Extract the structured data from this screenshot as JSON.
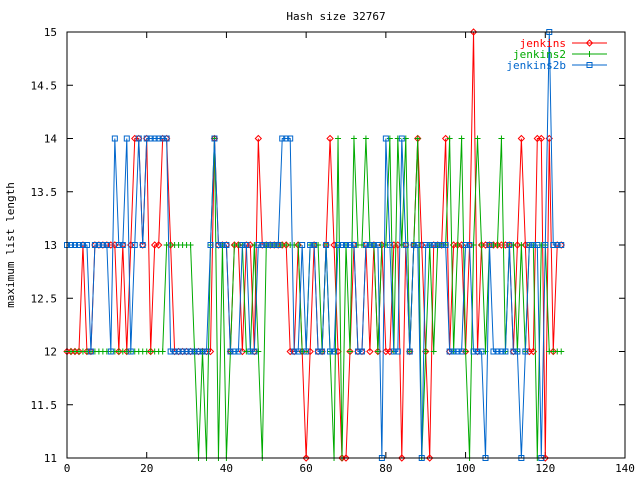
{
  "chart_data": {
    "type": "line",
    "title": "Hash size 32767",
    "xlabel": "",
    "ylabel": "maximum list length",
    "xlim": [
      0,
      140
    ],
    "ylim": [
      11,
      15
    ],
    "xticks": [
      0,
      20,
      40,
      60,
      80,
      100,
      120,
      140
    ],
    "yticks": [
      11,
      11.5,
      12,
      12.5,
      13,
      13.5,
      14,
      14.5,
      15
    ],
    "ytick_labels": [
      "11",
      "11.5",
      "12",
      "12.5",
      "13",
      "13.5",
      "14",
      "14.5",
      "15"
    ],
    "grid": false,
    "legend_position": "top-right",
    "x": [
      0,
      1,
      2,
      3,
      4,
      5,
      6,
      7,
      8,
      9,
      10,
      11,
      12,
      13,
      14,
      15,
      16,
      17,
      18,
      19,
      20,
      21,
      22,
      23,
      24,
      25,
      26,
      27,
      28,
      29,
      30,
      31,
      32,
      33,
      34,
      35,
      36,
      37,
      38,
      39,
      40,
      41,
      42,
      43,
      44,
      45,
      46,
      47,
      48,
      49,
      50,
      51,
      52,
      53,
      54,
      55,
      56,
      57,
      58,
      59,
      60,
      61,
      62,
      63,
      64,
      65,
      66,
      67,
      68,
      69,
      70,
      71,
      72,
      73,
      74,
      75,
      76,
      77,
      78,
      79,
      80,
      81,
      82,
      83,
      84,
      85,
      86,
      87,
      88,
      89,
      90,
      91,
      92,
      93,
      94,
      95,
      96,
      97,
      98,
      99,
      100,
      101,
      102,
      103,
      104,
      105,
      106,
      107,
      108,
      109,
      110,
      111,
      112,
      113,
      114,
      115,
      116,
      117,
      118,
      119,
      120,
      121,
      122,
      123,
      124
    ],
    "series": [
      {
        "name": "jenkins",
        "color": "#ff0000",
        "marker": "diamond",
        "values": [
          12,
          12,
          12,
          12,
          13,
          12,
          12,
          13,
          13,
          13,
          13,
          13,
          13,
          12,
          13,
          12,
          13,
          14,
          14,
          13,
          14,
          12,
          13,
          13,
          14,
          14,
          13,
          12,
          12,
          12,
          12,
          12,
          12,
          12,
          12,
          12,
          12,
          14,
          13,
          13,
          13,
          12,
          13,
          13,
          12,
          13,
          13,
          12,
          14,
          13,
          13,
          13,
          13,
          13,
          13,
          13,
          12,
          12,
          13,
          12,
          11,
          12,
          13,
          12,
          12,
          13,
          14,
          13,
          12,
          11,
          11,
          12,
          13,
          12,
          12,
          13,
          12,
          13,
          12,
          13,
          12,
          12,
          13,
          13,
          11,
          13,
          12,
          13,
          14,
          13,
          12,
          11,
          13,
          13,
          13,
          14,
          12,
          13,
          13,
          13,
          12,
          13,
          15,
          12,
          13,
          13,
          13,
          13,
          13,
          13,
          13,
          13,
          12,
          13,
          14,
          13,
          12,
          12,
          14,
          14,
          11,
          14,
          12,
          13,
          13
        ]
      },
      {
        "name": "jenkins2",
        "color": "#00aa00",
        "marker": "plus",
        "values": [
          12,
          12,
          12,
          12,
          12,
          12,
          12,
          12,
          12,
          12,
          12,
          12,
          12,
          12,
          12,
          12,
          12,
          12,
          12,
          12,
          12,
          12,
          12,
          12,
          12,
          13,
          13,
          13,
          13,
          13,
          13,
          13,
          12,
          11,
          12,
          11,
          13,
          14,
          11,
          13,
          11,
          12,
          13,
          13,
          13,
          12,
          12,
          13,
          12,
          11,
          13,
          13,
          13,
          13,
          13,
          13,
          13,
          13,
          13,
          12,
          12,
          13,
          13,
          13,
          12,
          13,
          12,
          11,
          14,
          11,
          13,
          12,
          14,
          13,
          13,
          14,
          13,
          13,
          12,
          13,
          13,
          14,
          12,
          14,
          13,
          14,
          12,
          13,
          14,
          11,
          12,
          13,
          12,
          13,
          13,
          13,
          14,
          12,
          13,
          14,
          12,
          11,
          13,
          14,
          13,
          12,
          13,
          13,
          13,
          14,
          12,
          13,
          13,
          12,
          13,
          12,
          13,
          13,
          11,
          13,
          13,
          12,
          12,
          12,
          12
        ]
      },
      {
        "name": "jenkins2b",
        "color": "#0066cc",
        "marker": "square",
        "values": [
          13,
          13,
          13,
          13,
          13,
          13,
          12,
          13,
          13,
          13,
          13,
          12,
          14,
          13,
          13,
          14,
          12,
          13,
          14,
          13,
          14,
          14,
          14,
          14,
          14,
          14,
          12,
          12,
          12,
          12,
          12,
          12,
          12,
          12,
          12,
          12,
          13,
          14,
          13,
          13,
          13,
          12,
          12,
          12,
          13,
          13,
          12,
          12,
          13,
          13,
          13,
          13,
          13,
          13,
          14,
          14,
          14,
          12,
          12,
          13,
          12,
          13,
          13,
          12,
          12,
          13,
          12,
          12,
          13,
          13,
          13,
          13,
          13,
          12,
          12,
          13,
          13,
          13,
          13,
          11,
          14,
          13,
          12,
          12,
          14,
          13,
          12,
          13,
          13,
          11,
          13,
          13,
          13,
          13,
          13,
          13,
          12,
          12,
          12,
          12,
          13,
          13,
          12,
          12,
          12,
          11,
          13,
          12,
          12,
          12,
          12,
          13,
          12,
          12,
          11,
          12,
          13,
          13,
          13,
          11,
          13,
          15,
          13,
          13,
          13
        ]
      }
    ]
  }
}
